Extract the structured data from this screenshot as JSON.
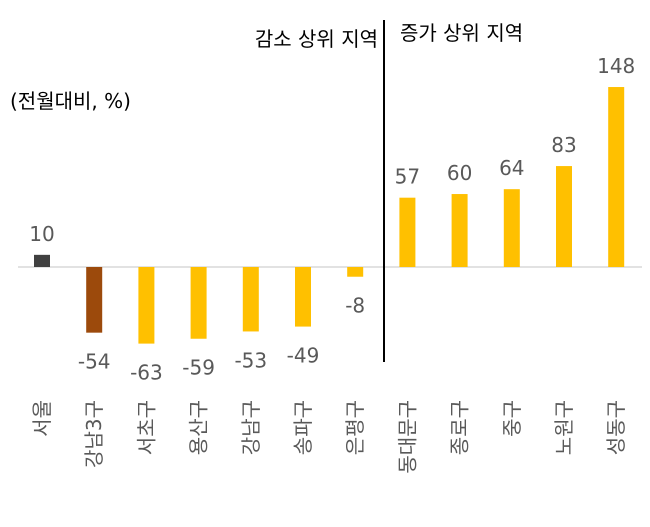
{
  "chart_data": {
    "type": "bar",
    "unit_note": "(전월대비, %)",
    "section_labels": {
      "decrease": "감소 상위 지역",
      "increase": "증가 상위 지역"
    },
    "categories": [
      "서울",
      "강남3구",
      "서초구",
      "용산구",
      "강남구",
      "송파구",
      "은평구",
      "동대문구",
      "종로구",
      "중구",
      "노원구",
      "성동구"
    ],
    "values": [
      10,
      -54,
      -63,
      -59,
      -53,
      -49,
      -8,
      57,
      60,
      64,
      83,
      148
    ],
    "colors": [
      "#404040",
      "#9C4A0C",
      "#FFC000",
      "#FFC000",
      "#FFC000",
      "#FFC000",
      "#FFC000",
      "#FFC000",
      "#FFC000",
      "#FFC000",
      "#FFC000",
      "#FFC000"
    ],
    "data_labels": true,
    "grid": false,
    "legend": "none"
  }
}
